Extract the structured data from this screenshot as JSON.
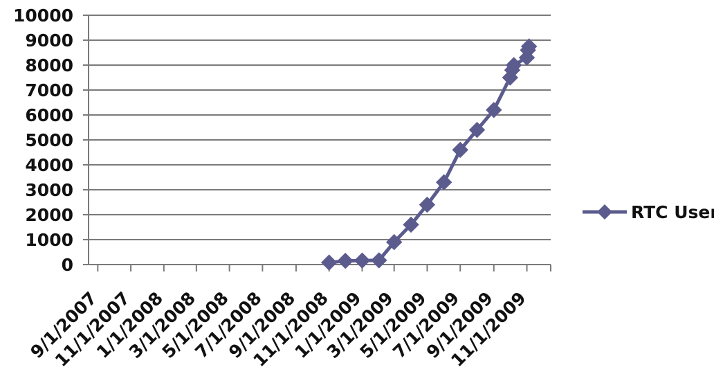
{
  "chart_data": {
    "type": "line",
    "title": "",
    "xlabel": "",
    "ylabel": "",
    "x_range": [
      "2007-08-15",
      "2009-12-15"
    ],
    "x_tick_labels": [
      "9/1/2007",
      "11/1/2007",
      "1/1/2008",
      "3/1/2008",
      "5/1/2008",
      "7/1/2008",
      "9/1/2008",
      "11/1/2008",
      "1/1/2009",
      "3/1/2009",
      "5/1/2009",
      "7/1/2009",
      "9/1/2009",
      "11/1/2009"
    ],
    "y_ticks": [
      0,
      1000,
      2000,
      3000,
      4000,
      5000,
      6000,
      7000,
      8000,
      9000,
      10000
    ],
    "ylim": [
      0,
      10000
    ],
    "grid": "horizontal",
    "legend_position": "right",
    "series": [
      {
        "name": "RTC User",
        "color": "#5b5b8e",
        "marker": "diamond",
        "points": [
          {
            "x": "2008-11-01",
            "y": 80
          },
          {
            "x": "2008-12-01",
            "y": 150
          },
          {
            "x": "2009-01-01",
            "y": 160
          },
          {
            "x": "2009-02-01",
            "y": 170
          },
          {
            "x": "2009-03-01",
            "y": 900
          },
          {
            "x": "2009-04-01",
            "y": 1600
          },
          {
            "x": "2009-05-01",
            "y": 2400
          },
          {
            "x": "2009-06-01",
            "y": 3300
          },
          {
            "x": "2009-07-01",
            "y": 4600
          },
          {
            "x": "2009-08-01",
            "y": 5400
          },
          {
            "x": "2009-09-01",
            "y": 6200
          },
          {
            "x": "2009-10-01",
            "y": 7500
          },
          {
            "x": "2009-10-05",
            "y": 7800
          },
          {
            "x": "2009-10-08",
            "y": 8000
          },
          {
            "x": "2009-11-01",
            "y": 8300
          },
          {
            "x": "2009-11-03",
            "y": 8600
          },
          {
            "x": "2009-11-05",
            "y": 8750
          }
        ]
      }
    ]
  }
}
